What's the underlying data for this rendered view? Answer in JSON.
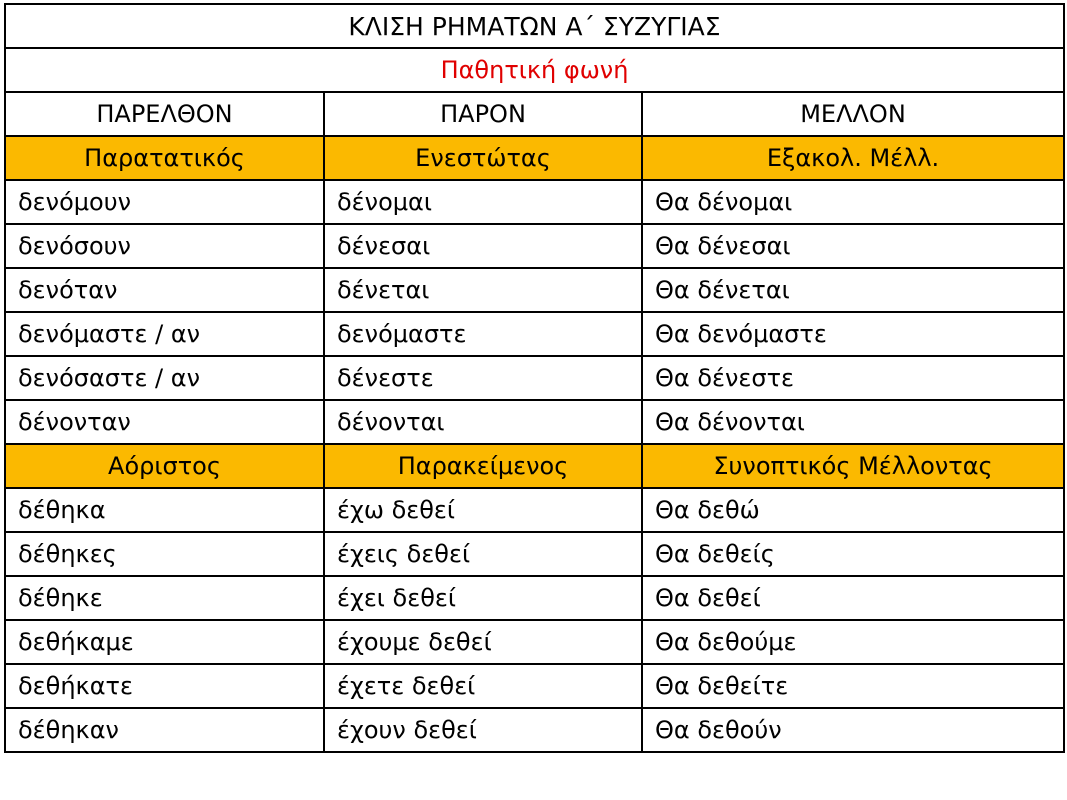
{
  "title": "ΚΛΙΣΗ ΡΗΜΑΤΩΝ Α΄ ΣΥΖΥΓΙΑΣ",
  "subtitle": "Παθητική φωνή",
  "headers": [
    "ΠΑΡΕΛΘΟΝ",
    "ΠΑΡΟΝ",
    "ΜΕΛΛΟΝ"
  ],
  "sections": [
    {
      "tenses": [
        "Παρατατικός",
        "Ενεστώτας",
        "Εξακολ. Μέλλ."
      ],
      "rows": [
        [
          "δενόμουν",
          "δένομαι",
          "Θα δένομαι"
        ],
        [
          "δενόσουν",
          "δένεσαι",
          "Θα δένεσαι"
        ],
        [
          "δενόταν",
          "δένεται",
          "Θα δένεται"
        ],
        [
          "δενόμαστε / αν",
          "δενόμαστε",
          "Θα δενόμαστε"
        ],
        [
          "δενόσαστε / αν",
          "δένεστε",
          "Θα δένεστε"
        ],
        [
          "δένονταν",
          "δένονται",
          "Θα δένονται"
        ]
      ]
    },
    {
      "tenses": [
        "Αόριστος",
        "Παρακείμενος",
        "Συνοπτικός Μέλλοντας"
      ],
      "rows": [
        [
          "δέθηκα",
          "έχω δεθεί",
          "Θα δεθώ"
        ],
        [
          "δέθηκες",
          "έχεις δεθεί",
          "Θα δεθείς"
        ],
        [
          "δέθηκε",
          "έχει δεθεί",
          "Θα δεθεί"
        ],
        [
          "δεθήκαμε",
          "έχουμε δεθεί",
          "Θα δεθούμε"
        ],
        [
          "δεθήκατε",
          "έχετε δεθεί",
          "Θα δεθείτε"
        ],
        [
          "δέθηκαν",
          "έχουν δεθεί",
          "Θα δεθούν"
        ]
      ]
    }
  ]
}
